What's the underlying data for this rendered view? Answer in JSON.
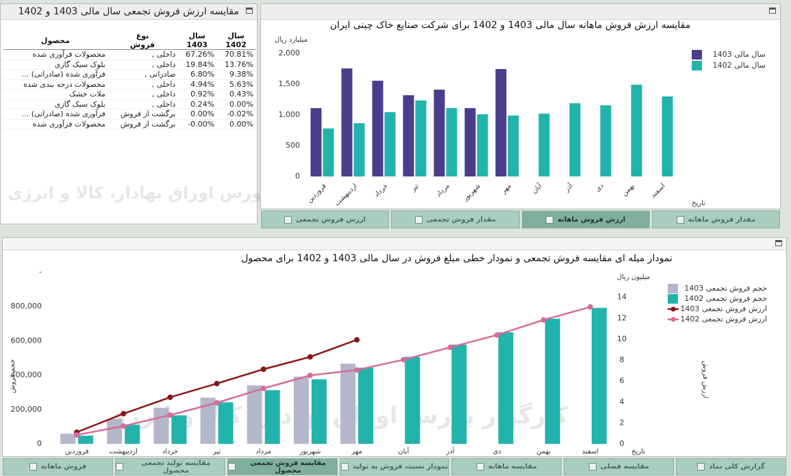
{
  "watermark": "کارگزار بورس اوراق بهادار، کالا و انرژی",
  "table_panel": {
    "title": "مقایسه ارزش فروش تجمعی سال مالی 1403 و 1402",
    "headers": [
      "محصول",
      "نوع فروش",
      "سال 1403",
      "سال 1402"
    ],
    "rows": [
      [
        "محصولات فرآوری شده",
        "داخلی ,",
        "67.26%",
        "70.81%"
      ],
      [
        "بلوک سبک گازی",
        "داخلی ,",
        "19.84%",
        "13.76%"
      ],
      [
        "فرآوری شده (صادراتی) ...",
        "صادراتی ,",
        "6.80%",
        "9.38%"
      ],
      [
        "محصولات درجه بندی شده",
        "داخلی ,",
        "4.94%",
        "5.63%"
      ],
      [
        "ملات خشک",
        "داخلی ,",
        "0.92%",
        "0.43%"
      ],
      [
        "بلوک سبک گازی",
        "داخلی ,",
        "0.24%",
        "0.00%"
      ],
      [
        "فرآوری شده (صادراتی) ...",
        "برگشت از فروش",
        "0.00%",
        "-0.02%"
      ],
      [
        "محصولات فرآوری شده",
        "برگشت از فروش",
        "-0.00%",
        "0.00%"
      ]
    ]
  },
  "chart_data": [
    {
      "type": "bar",
      "title": "مقایسه ارزش فروش ماهانه سال مالی 1403 و 1402 برای شرکت صنایع خاک چینی ایران",
      "y_label": "میلیارد ریال",
      "x_label": "تاریخ",
      "categories": [
        "فروردین",
        "اردیبهشت",
        "خرداد",
        "تیر",
        "مرداد",
        "شهریور",
        "مهر",
        "آبان",
        "آذر",
        "دی",
        "بهمن",
        "اسفند"
      ],
      "series": [
        {
          "name": "سال مالی 1403",
          "color": "#4b3c8c",
          "values": [
            1110,
            1755,
            1555,
            1320,
            1410,
            1110,
            1745,
            null,
            null,
            null,
            null,
            null
          ]
        },
        {
          "name": "سال مالی 1402",
          "color": "#22b3ac",
          "values": [
            780,
            865,
            1045,
            1235,
            1110,
            1010,
            990,
            1020,
            1190,
            1155,
            1490,
            1300
          ]
        }
      ],
      "ylim": [
        0,
        2000
      ],
      "yticks": [
        0,
        500,
        {
          "value": 1000,
          "label": "1,000"
        },
        {
          "value": 1500,
          "label": "1,500"
        },
        {
          "value": 2000,
          "label": "2,000"
        }
      ],
      "legend": "right"
    },
    {
      "type": "combo",
      "title": "نمودار میله ای مقایسه فروش تجمعی و نمودار خطی مبلغ فروش در سال مالی 1403 و 1402 برای محصول",
      "y_label": "حجم فروش",
      "y2_label": "ارزش فروش",
      "y2_unit": "میلیون ریال",
      "x_label": "تاریخ",
      "categories": [
        "فروردین",
        "اردیبهشت",
        "خرداد",
        "تیر",
        "مرداد",
        "شهریور",
        "مهر",
        "آبان",
        "آذر",
        "دی",
        "بهمن",
        "اسفند"
      ],
      "series": [
        {
          "name": "حجم فروش تجمعی 1403",
          "type": "bar",
          "color": "#b3b7c9",
          "values": [
            59000,
            146000,
            210000,
            269000,
            341000,
            392000,
            467000,
            null,
            null,
            null,
            null,
            null
          ]
        },
        {
          "name": "حجم فروش تجمعی 1402",
          "type": "bar",
          "color": "#22b3ac",
          "values": [
            48000,
            111000,
            166000,
            242000,
            313000,
            376000,
            444000,
            507000,
            578000,
            650000,
            729000,
            792000
          ]
        },
        {
          "name": "ارزش فروش تجمعی 1403",
          "type": "line",
          "axis": "y2",
          "color": "#8b1414",
          "values": [
            1.11,
            2.88,
            4.45,
            5.76,
            7.13,
            8.31,
            9.94,
            null,
            null,
            null,
            null,
            null
          ]
        },
        {
          "name": "ارزش فروش تجمعی 1402",
          "type": "line",
          "axis": "y2",
          "color": "#d86b9a",
          "values": [
            0.85,
            1.7,
            2.75,
            3.92,
            5.3,
            6.54,
            7.06,
            8.04,
            9.22,
            10.4,
            11.84,
            13.08
          ]
        }
      ],
      "ylim": [
        0,
        1000000
      ],
      "yticks": [
        0,
        {
          "value": 200000,
          "label": "200,000"
        },
        {
          "value": 400000,
          "label": "400,000"
        },
        {
          "value": 600000,
          "label": "600,000"
        },
        {
          "value": 800000,
          "label": "800,000"
        },
        {
          "value": 1000000,
          "label": "-"
        }
      ],
      "y2lim": [
        0,
        16.4
      ],
      "y2ticks": [
        0,
        2,
        4,
        6,
        8,
        10,
        12,
        14
      ],
      "legend": "right"
    }
  ],
  "top_tabs": [
    {
      "label": "ارزش فروش تجمعی"
    },
    {
      "label": "مقدار فروش تجمعی"
    },
    {
      "label": "ارزش فروش ماهانه",
      "active": true
    },
    {
      "label": "مقدار فروش ماهانه"
    }
  ],
  "bottom_tabs": [
    {
      "label": "فروش ماهانه"
    },
    {
      "label": "مقایسه تولید تجمعی محصول"
    },
    {
      "label": "مقایسه فروش تجمعی محصول",
      "active": true
    },
    {
      "label": "نمودار نسبت فروش به تولید"
    },
    {
      "label": "مقایسه ماهانه"
    },
    {
      "label": "مقایسه فصلی"
    },
    {
      "label": "گزارش کلی نماد"
    }
  ]
}
